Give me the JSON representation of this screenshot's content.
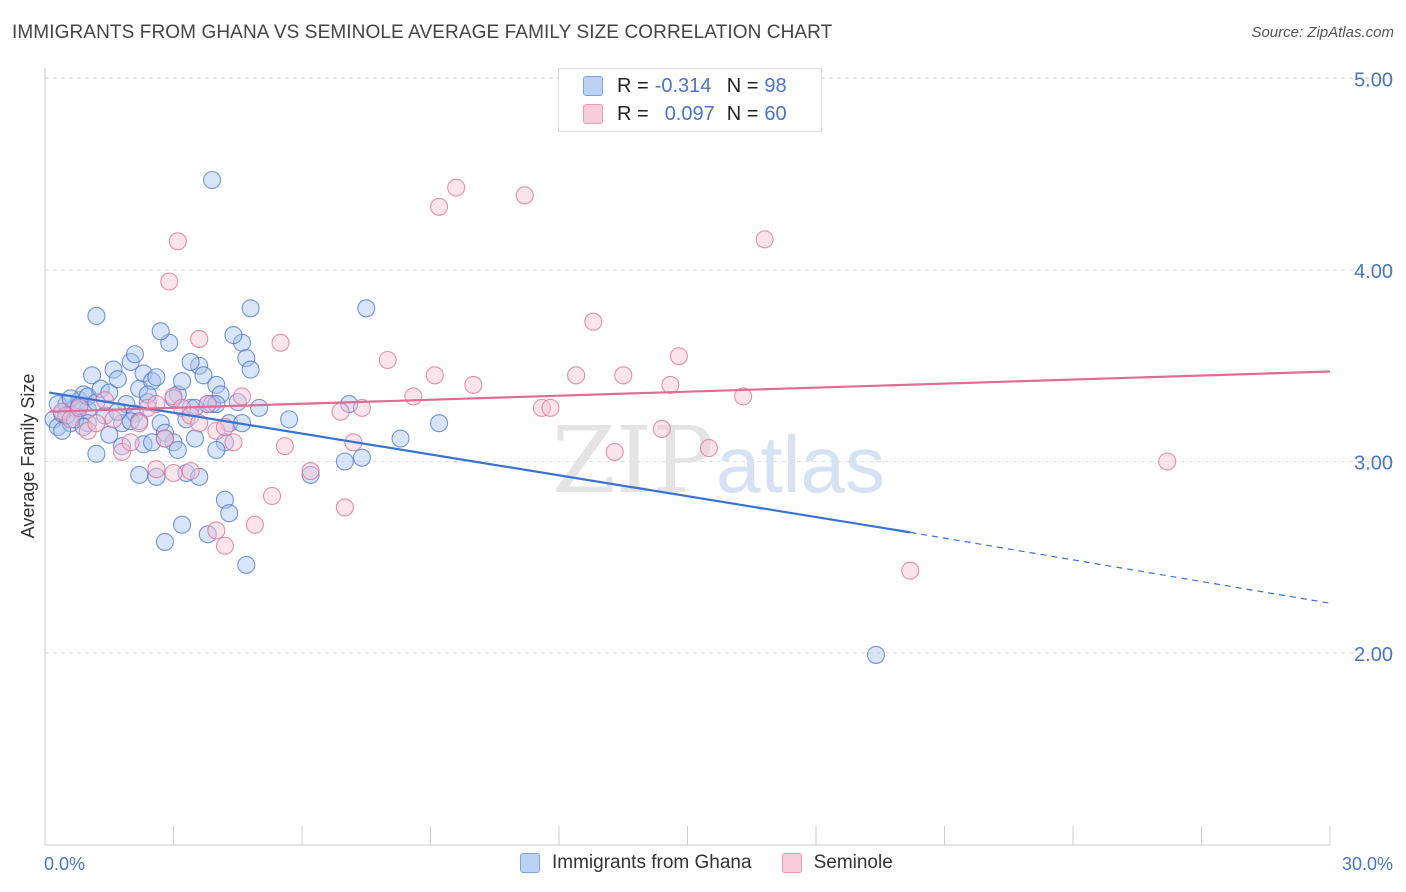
{
  "header": {
    "title": "IMMIGRANTS FROM GHANA VS SEMINOLE AVERAGE FAMILY SIZE CORRELATION CHART",
    "source": "Source: ZipAtlas.com"
  },
  "legend": {
    "rows": [
      {
        "r_label": "R =",
        "r_value": "-0.314",
        "n_label": "N =",
        "n_value": "98",
        "color": "#8fb3ea"
      },
      {
        "r_label": "R =",
        "r_value": "0.097",
        "n_label": "N =",
        "n_value": "60",
        "color": "#f2a6bf"
      }
    ]
  },
  "watermark": {
    "zip": "ZIP",
    "atlas": "atlas"
  },
  "chart_data": {
    "type": "scatter",
    "ylabel": "Average Family Size",
    "xlabel": "",
    "xlim": [
      0,
      30
    ],
    "ylim": [
      1.15,
      5.1
    ],
    "x_tick_labels": [
      "0.0%",
      "30.0%"
    ],
    "y_ticks": [
      2.0,
      3.0,
      4.0,
      5.0
    ],
    "y_tick_labels": [
      "2.00",
      "3.00",
      "4.00",
      "5.00"
    ],
    "grid": true,
    "legend_position": "top-center",
    "series": [
      {
        "name": "Immigrants from Ghana",
        "color": "#4a74c9",
        "fill": "#a9c4f0",
        "trend": {
          "x0": 0.1,
          "y0": 3.36,
          "x1": 20.2,
          "y1": 2.63,
          "dash_to_x": 30,
          "dash_to_y": 2.26
        },
        "points": [
          [
            0.2,
            3.22
          ],
          [
            0.3,
            3.18
          ],
          [
            0.4,
            3.25
          ],
          [
            0.5,
            3.3
          ],
          [
            0.6,
            3.2
          ],
          [
            0.7,
            3.28
          ],
          [
            0.8,
            3.32
          ],
          [
            0.9,
            3.35
          ],
          [
            1.0,
            3.27
          ],
          [
            0.3,
            3.3
          ],
          [
            0.5,
            3.24
          ],
          [
            0.6,
            3.33
          ],
          [
            0.7,
            3.22
          ],
          [
            0.8,
            3.29
          ],
          [
            1.0,
            3.34
          ],
          [
            1.1,
            3.45
          ],
          [
            1.2,
            3.31
          ],
          [
            1.3,
            3.38
          ],
          [
            1.4,
            3.24
          ],
          [
            1.5,
            3.36
          ],
          [
            1.6,
            3.48
          ],
          [
            1.7,
            3.43
          ],
          [
            1.8,
            3.2
          ],
          [
            1.9,
            3.3
          ],
          [
            2.0,
            3.52
          ],
          [
            2.1,
            3.25
          ],
          [
            2.2,
            3.38
          ],
          [
            2.3,
            3.46
          ],
          [
            2.4,
            3.31
          ],
          [
            2.5,
            3.42
          ],
          [
            2.6,
            3.44
          ],
          [
            2.7,
            3.2
          ],
          [
            2.8,
            3.15
          ],
          [
            2.9,
            3.62
          ],
          [
            3.0,
            3.1
          ],
          [
            3.1,
            3.35
          ],
          [
            3.2,
            3.42
          ],
          [
            3.3,
            3.22
          ],
          [
            3.4,
            3.28
          ],
          [
            3.5,
            3.12
          ],
          [
            3.6,
            3.5
          ],
          [
            3.7,
            3.45
          ],
          [
            3.8,
            3.3
          ],
          [
            3.9,
            3.3
          ],
          [
            4.0,
            3.4
          ],
          [
            4.1,
            3.35
          ],
          [
            4.2,
            3.1
          ],
          [
            4.3,
            3.2
          ],
          [
            4.5,
            3.31
          ],
          [
            4.6,
            3.62
          ],
          [
            4.7,
            3.54
          ],
          [
            4.8,
            3.48
          ],
          [
            1.2,
            3.76
          ],
          [
            2.1,
            3.56
          ],
          [
            2.7,
            3.68
          ],
          [
            3.4,
            3.52
          ],
          [
            4.4,
            3.66
          ],
          [
            4.8,
            3.8
          ],
          [
            3.9,
            4.47
          ],
          [
            7.5,
            3.8
          ],
          [
            1.2,
            3.04
          ],
          [
            1.8,
            3.08
          ],
          [
            2.0,
            3.21
          ],
          [
            2.3,
            3.09
          ],
          [
            2.5,
            3.1
          ],
          [
            2.6,
            2.92
          ],
          [
            2.8,
            3.12
          ],
          [
            3.1,
            3.06
          ],
          [
            3.3,
            2.94
          ],
          [
            3.6,
            2.92
          ],
          [
            4.0,
            3.06
          ],
          [
            4.2,
            2.8
          ],
          [
            4.3,
            2.73
          ],
          [
            3.2,
            2.67
          ],
          [
            3.8,
            2.62
          ],
          [
            2.8,
            2.58
          ],
          [
            4.7,
            2.46
          ],
          [
            5.7,
            3.22
          ],
          [
            7.1,
            3.3
          ],
          [
            6.2,
            2.93
          ],
          [
            7.0,
            3.0
          ],
          [
            7.4,
            3.02
          ],
          [
            8.3,
            3.12
          ],
          [
            9.2,
            3.2
          ],
          [
            2.2,
            2.93
          ],
          [
            1.5,
            3.14
          ],
          [
            1.0,
            3.2
          ],
          [
            0.4,
            3.16
          ],
          [
            0.9,
            3.18
          ],
          [
            1.7,
            3.26
          ],
          [
            2.4,
            3.35
          ],
          [
            3.0,
            3.33
          ],
          [
            3.5,
            3.28
          ],
          [
            4.0,
            3.3
          ],
          [
            4.6,
            3.2
          ],
          [
            5.0,
            3.28
          ],
          [
            2.2,
            3.21
          ],
          [
            19.4,
            1.99
          ]
        ]
      },
      {
        "name": "Seminole",
        "color": "#e06c95",
        "fill": "#f6c3d4",
        "trend": {
          "x0": 0.1,
          "y0": 3.26,
          "x1": 30,
          "y1": 3.47
        },
        "points": [
          [
            0.4,
            3.26
          ],
          [
            0.6,
            3.22
          ],
          [
            0.8,
            3.28
          ],
          [
            1.0,
            3.16
          ],
          [
            1.2,
            3.2
          ],
          [
            1.4,
            3.32
          ],
          [
            1.6,
            3.22
          ],
          [
            1.8,
            3.05
          ],
          [
            2.0,
            3.1
          ],
          [
            2.2,
            3.2
          ],
          [
            2.4,
            3.28
          ],
          [
            2.6,
            3.3
          ],
          [
            2.8,
            3.12
          ],
          [
            3.0,
            3.34
          ],
          [
            3.2,
            3.28
          ],
          [
            3.4,
            3.24
          ],
          [
            3.6,
            3.2
          ],
          [
            3.8,
            3.3
          ],
          [
            4.0,
            3.16
          ],
          [
            4.2,
            3.18
          ],
          [
            4.4,
            3.1
          ],
          [
            2.6,
            2.96
          ],
          [
            3.0,
            2.94
          ],
          [
            3.4,
            2.95
          ],
          [
            4.0,
            2.64
          ],
          [
            4.2,
            2.56
          ],
          [
            4.9,
            2.67
          ],
          [
            5.3,
            2.82
          ],
          [
            5.6,
            3.08
          ],
          [
            6.2,
            2.95
          ],
          [
            7.0,
            2.76
          ],
          [
            7.2,
            3.1
          ],
          [
            6.9,
            3.26
          ],
          [
            7.4,
            3.28
          ],
          [
            8.0,
            3.53
          ],
          [
            8.6,
            3.34
          ],
          [
            9.1,
            3.45
          ],
          [
            9.2,
            4.33
          ],
          [
            9.6,
            4.43
          ],
          [
            10.0,
            3.4
          ],
          [
            11.2,
            4.39
          ],
          [
            11.6,
            3.28
          ],
          [
            11.8,
            3.28
          ],
          [
            12.4,
            3.45
          ],
          [
            12.8,
            3.73
          ],
          [
            13.3,
            3.05
          ],
          [
            13.5,
            3.45
          ],
          [
            14.4,
            3.17
          ],
          [
            14.6,
            3.4
          ],
          [
            14.8,
            3.55
          ],
          [
            15.5,
            3.07
          ],
          [
            16.3,
            3.34
          ],
          [
            16.8,
            4.16
          ],
          [
            2.9,
            3.94
          ],
          [
            3.1,
            4.15
          ],
          [
            3.6,
            3.64
          ],
          [
            5.5,
            3.62
          ],
          [
            20.2,
            2.43
          ],
          [
            26.2,
            3.0
          ],
          [
            4.6,
            3.34
          ]
        ]
      }
    ]
  }
}
